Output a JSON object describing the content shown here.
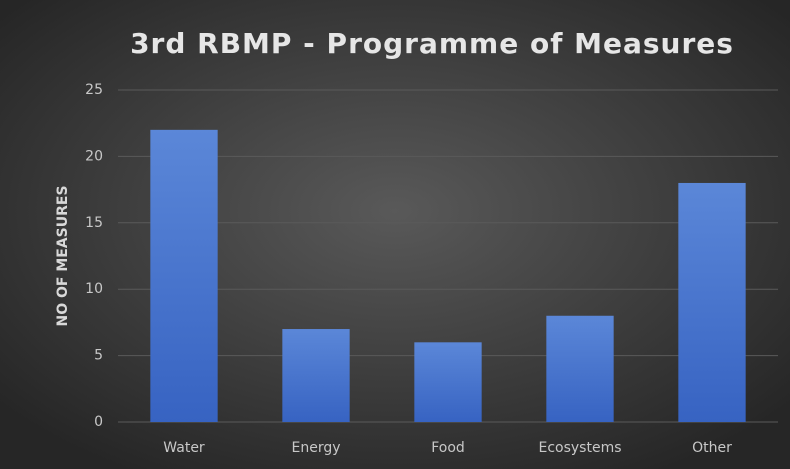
{
  "chart_data": {
    "type": "bar",
    "title": "3rd RBMP - Programme of Measures",
    "y_label": "NO OF MEASURES",
    "categories": [
      "Water",
      "Energy",
      "Food",
      "Ecosystems",
      "Other"
    ],
    "values": [
      22,
      7,
      6,
      8,
      18
    ],
    "color": "#4a76d0",
    "ylim": [
      0,
      25
    ],
    "yticks": [
      0,
      5,
      10,
      15,
      20,
      25
    ],
    "grid": true
  }
}
